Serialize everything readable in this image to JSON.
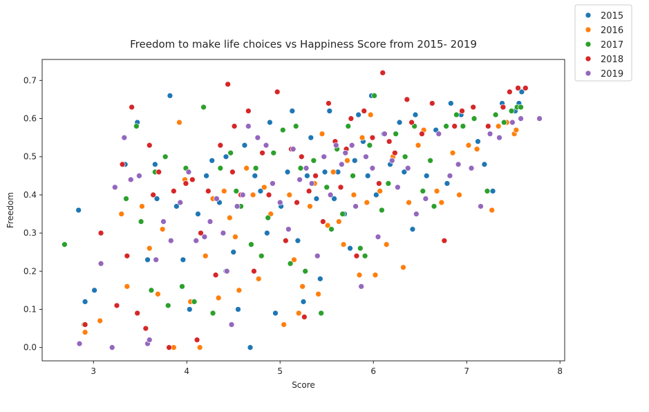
{
  "chart_data": {
    "type": "scatter",
    "title": "Freedom to make life choices vs Happiness Score from 2015- 2019",
    "xlabel": "Score",
    "ylabel": "Freedom",
    "xlim": [
      2.45,
      8.05
    ],
    "ylim": [
      -0.035,
      0.755
    ],
    "xticks": [
      3,
      4,
      5,
      6,
      7,
      8
    ],
    "yticks": [
      0.0,
      0.1,
      0.2,
      0.3,
      0.4,
      0.5,
      0.6,
      0.7
    ],
    "grid": false,
    "legend_position": "outside-top-right",
    "series": [
      {
        "name": "2015",
        "color": "#1f77b4",
        "points": [
          [
            2.84,
            0.36
          ],
          [
            2.91,
            0.12
          ],
          [
            3.01,
            0.15
          ],
          [
            3.34,
            0.48
          ],
          [
            3.47,
            0.59
          ],
          [
            3.58,
            0.23
          ],
          [
            3.66,
            0.48
          ],
          [
            3.68,
            0.39
          ],
          [
            3.82,
            0.66
          ],
          [
            3.89,
            0.37
          ],
          [
            3.96,
            0.23
          ],
          [
            4.03,
            0.1
          ],
          [
            4.12,
            0.35
          ],
          [
            4.21,
            0.45
          ],
          [
            4.27,
            0.49
          ],
          [
            4.35,
            0.38
          ],
          [
            4.42,
            0.5
          ],
          [
            4.5,
            0.25
          ],
          [
            4.55,
            0.1
          ],
          [
            4.62,
            0.53
          ],
          [
            4.68,
            0.0
          ],
          [
            4.73,
            0.45
          ],
          [
            4.79,
            0.41
          ],
          [
            4.86,
            0.3
          ],
          [
            4.89,
            0.59
          ],
          [
            4.95,
            0.09
          ],
          [
            5.01,
            0.37
          ],
          [
            5.08,
            0.46
          ],
          [
            5.13,
            0.62
          ],
          [
            5.19,
            0.28
          ],
          [
            5.25,
            0.12
          ],
          [
            5.29,
            0.45
          ],
          [
            5.33,
            0.55
          ],
          [
            5.39,
            0.39
          ],
          [
            5.43,
            0.18
          ],
          [
            5.48,
            0.46
          ],
          [
            5.53,
            0.62
          ],
          [
            5.58,
            0.39
          ],
          [
            5.62,
            0.46
          ],
          [
            5.69,
            0.35
          ],
          [
            5.75,
            0.26
          ],
          [
            5.8,
            0.49
          ],
          [
            5.84,
            0.61
          ],
          [
            5.89,
            0.54
          ],
          [
            5.94,
            0.45
          ],
          [
            5.98,
            0.66
          ],
          [
            6.03,
            0.4
          ],
          [
            6.11,
            0.56
          ],
          [
            6.18,
            0.48
          ],
          [
            6.28,
            0.59
          ],
          [
            6.33,
            0.46
          ],
          [
            6.42,
            0.31
          ],
          [
            6.45,
            0.61
          ],
          [
            6.57,
            0.45
          ],
          [
            6.67,
            0.57
          ],
          [
            6.79,
            0.43
          ],
          [
            6.83,
            0.64
          ],
          [
            6.94,
            0.61
          ],
          [
            7.12,
            0.54
          ],
          [
            7.19,
            0.48
          ],
          [
            7.28,
            0.41
          ],
          [
            7.38,
            0.64
          ],
          [
            7.52,
            0.62
          ],
          [
            7.59,
            0.67
          ],
          [
            7.56,
            0.64
          ]
        ]
      },
      {
        "name": "2016",
        "color": "#ff7f0e",
        "points": [
          [
            2.91,
            0.04
          ],
          [
            3.07,
            0.07
          ],
          [
            3.3,
            0.35
          ],
          [
            3.36,
            0.16
          ],
          [
            3.52,
            0.37
          ],
          [
            3.6,
            0.26
          ],
          [
            3.69,
            0.14
          ],
          [
            3.74,
            0.31
          ],
          [
            3.86,
            0.0
          ],
          [
            3.92,
            0.59
          ],
          [
            3.98,
            0.44
          ],
          [
            4.04,
            0.12
          ],
          [
            4.14,
            0.0
          ],
          [
            4.2,
            0.24
          ],
          [
            4.28,
            0.39
          ],
          [
            4.34,
            0.13
          ],
          [
            4.4,
            0.41
          ],
          [
            4.46,
            0.34
          ],
          [
            4.52,
            0.29
          ],
          [
            4.56,
            0.15
          ],
          [
            4.64,
            0.47
          ],
          [
            4.71,
            0.4
          ],
          [
            4.77,
            0.18
          ],
          [
            4.83,
            0.42
          ],
          [
            4.9,
            0.35
          ],
          [
            5.04,
            0.06
          ],
          [
            5.1,
            0.4
          ],
          [
            5.15,
            0.23
          ],
          [
            5.2,
            0.09
          ],
          [
            5.24,
            0.16
          ],
          [
            5.32,
            0.37
          ],
          [
            5.37,
            0.43
          ],
          [
            5.41,
            0.14
          ],
          [
            5.45,
            0.56
          ],
          [
            5.51,
            0.32
          ],
          [
            5.57,
            0.46
          ],
          [
            5.63,
            0.33
          ],
          [
            5.68,
            0.27
          ],
          [
            5.72,
            0.49
          ],
          [
            5.79,
            0.4
          ],
          [
            5.85,
            0.19
          ],
          [
            5.88,
            0.55
          ],
          [
            5.93,
            0.38
          ],
          [
            5.97,
            0.61
          ],
          [
            6.02,
            0.19
          ],
          [
            6.07,
            0.41
          ],
          [
            6.14,
            0.27
          ],
          [
            6.21,
            0.5
          ],
          [
            6.32,
            0.21
          ],
          [
            6.38,
            0.38
          ],
          [
            6.48,
            0.53
          ],
          [
            6.54,
            0.57
          ],
          [
            6.68,
            0.41
          ],
          [
            6.73,
            0.38
          ],
          [
            6.85,
            0.51
          ],
          [
            6.92,
            0.4
          ],
          [
            7.02,
            0.53
          ],
          [
            7.11,
            0.52
          ],
          [
            7.27,
            0.36
          ],
          [
            7.34,
            0.58
          ],
          [
            7.43,
            0.59
          ],
          [
            7.51,
            0.56
          ],
          [
            7.53,
            0.57
          ]
        ]
      },
      {
        "name": "2017",
        "color": "#2ca02c",
        "points": [
          [
            2.69,
            0.27
          ],
          [
            2.9,
            0.06
          ],
          [
            3.35,
            0.39
          ],
          [
            3.46,
            0.58
          ],
          [
            3.51,
            0.33
          ],
          [
            3.62,
            0.15
          ],
          [
            3.66,
            0.46
          ],
          [
            3.77,
            0.5
          ],
          [
            3.8,
            0.11
          ],
          [
            3.95,
            0.16
          ],
          [
            3.99,
            0.47
          ],
          [
            4.08,
            0.12
          ],
          [
            4.18,
            0.63
          ],
          [
            4.28,
            0.09
          ],
          [
            4.36,
            0.47
          ],
          [
            4.42,
            0.2
          ],
          [
            4.47,
            0.51
          ],
          [
            4.53,
            0.41
          ],
          [
            4.58,
            0.37
          ],
          [
            4.69,
            0.27
          ],
          [
            4.74,
            0.47
          ],
          [
            4.8,
            0.24
          ],
          [
            4.87,
            0.34
          ],
          [
            4.93,
            0.51
          ],
          [
            5.03,
            0.57
          ],
          [
            5.11,
            0.22
          ],
          [
            5.17,
            0.58
          ],
          [
            5.22,
            0.47
          ],
          [
            5.27,
            0.2
          ],
          [
            5.36,
            0.49
          ],
          [
            5.44,
            0.09
          ],
          [
            5.5,
            0.42
          ],
          [
            5.55,
            0.31
          ],
          [
            5.61,
            0.52
          ],
          [
            5.67,
            0.35
          ],
          [
            5.73,
            0.58
          ],
          [
            5.78,
            0.45
          ],
          [
            5.86,
            0.26
          ],
          [
            5.91,
            0.24
          ],
          [
            5.96,
            0.53
          ],
          [
            6.01,
            0.66
          ],
          [
            6.09,
            0.36
          ],
          [
            6.16,
            0.43
          ],
          [
            6.24,
            0.56
          ],
          [
            6.34,
            0.5
          ],
          [
            6.44,
            0.58
          ],
          [
            6.53,
            0.41
          ],
          [
            6.61,
            0.49
          ],
          [
            6.65,
            0.37
          ],
          [
            6.78,
            0.58
          ],
          [
            6.89,
            0.61
          ],
          [
            6.96,
            0.58
          ],
          [
            7.08,
            0.6
          ],
          [
            7.22,
            0.41
          ],
          [
            7.31,
            0.61
          ],
          [
            7.4,
            0.59
          ],
          [
            7.48,
            0.62
          ],
          [
            7.54,
            0.63
          ],
          [
            7.58,
            0.63
          ]
        ]
      },
      {
        "name": "2018",
        "color": "#d62728",
        "points": [
          [
            2.91,
            0.06
          ],
          [
            3.08,
            0.3
          ],
          [
            3.25,
            0.11
          ],
          [
            3.31,
            0.48
          ],
          [
            3.36,
            0.24
          ],
          [
            3.41,
            0.63
          ],
          [
            3.47,
            0.09
          ],
          [
            3.56,
            0.05
          ],
          [
            3.6,
            0.53
          ],
          [
            3.64,
            0.4
          ],
          [
            3.7,
            0.46
          ],
          [
            3.81,
            0.0
          ],
          [
            3.86,
            0.41
          ],
          [
            3.99,
            0.43
          ],
          [
            4.06,
            0.44
          ],
          [
            4.11,
            0.02
          ],
          [
            4.15,
            0.3
          ],
          [
            4.23,
            0.41
          ],
          [
            4.31,
            0.19
          ],
          [
            4.36,
            0.53
          ],
          [
            4.44,
            0.69
          ],
          [
            4.49,
            0.46
          ],
          [
            4.51,
            0.58
          ],
          [
            4.58,
            0.4
          ],
          [
            4.66,
            0.62
          ],
          [
            4.72,
            0.2
          ],
          [
            4.81,
            0.51
          ],
          [
            4.88,
            0.4
          ],
          [
            4.97,
            0.67
          ],
          [
            5.06,
            0.28
          ],
          [
            5.12,
            0.52
          ],
          [
            5.18,
            0.38
          ],
          [
            5.23,
            0.5
          ],
          [
            5.26,
            0.08
          ],
          [
            5.31,
            0.41
          ],
          [
            5.38,
            0.45
          ],
          [
            5.46,
            0.33
          ],
          [
            5.52,
            0.64
          ],
          [
            5.59,
            0.54
          ],
          [
            5.65,
            0.42
          ],
          [
            5.71,
            0.52
          ],
          [
            5.76,
            0.6
          ],
          [
            5.82,
            0.24
          ],
          [
            5.9,
            0.62
          ],
          [
            5.99,
            0.55
          ],
          [
            6.06,
            0.43
          ],
          [
            6.1,
            0.72
          ],
          [
            6.17,
            0.54
          ],
          [
            6.23,
            0.51
          ],
          [
            6.36,
            0.65
          ],
          [
            6.41,
            0.59
          ],
          [
            6.52,
            0.56
          ],
          [
            6.63,
            0.64
          ],
          [
            6.76,
            0.28
          ],
          [
            6.87,
            0.58
          ],
          [
            6.95,
            0.62
          ],
          [
            7.07,
            0.63
          ],
          [
            7.23,
            0.58
          ],
          [
            7.39,
            0.63
          ],
          [
            7.46,
            0.67
          ],
          [
            7.55,
            0.68
          ],
          [
            7.63,
            0.68
          ]
        ]
      },
      {
        "name": "2019",
        "color": "#9467bd",
        "points": [
          [
            2.85,
            0.01
          ],
          [
            3.08,
            0.22
          ],
          [
            3.2,
            0.0
          ],
          [
            3.23,
            0.42
          ],
          [
            3.33,
            0.55
          ],
          [
            3.4,
            0.44
          ],
          [
            3.49,
            0.45
          ],
          [
            3.58,
            0.01
          ],
          [
            3.6,
            0.02
          ],
          [
            3.67,
            0.23
          ],
          [
            3.75,
            0.33
          ],
          [
            3.83,
            0.28
          ],
          [
            3.93,
            0.38
          ],
          [
            4.02,
            0.46
          ],
          [
            4.1,
            0.28
          ],
          [
            4.19,
            0.29
          ],
          [
            4.25,
            0.33
          ],
          [
            4.32,
            0.39
          ],
          [
            4.39,
            0.3
          ],
          [
            4.43,
            0.2
          ],
          [
            4.48,
            0.06
          ],
          [
            4.54,
            0.37
          ],
          [
            4.6,
            0.4
          ],
          [
            4.66,
            0.58
          ],
          [
            4.76,
            0.55
          ],
          [
            4.85,
            0.53
          ],
          [
            4.92,
            0.43
          ],
          [
            5.0,
            0.38
          ],
          [
            5.09,
            0.31
          ],
          [
            5.14,
            0.52
          ],
          [
            5.21,
            0.44
          ],
          [
            5.28,
            0.47
          ],
          [
            5.34,
            0.43
          ],
          [
            5.4,
            0.24
          ],
          [
            5.47,
            0.5
          ],
          [
            5.54,
            0.4
          ],
          [
            5.6,
            0.53
          ],
          [
            5.66,
            0.48
          ],
          [
            5.7,
            0.51
          ],
          [
            5.77,
            0.53
          ],
          [
            5.81,
            0.37
          ],
          [
            5.87,
            0.16
          ],
          [
            5.92,
            0.5
          ],
          [
            5.99,
            0.47
          ],
          [
            6.05,
            0.29
          ],
          [
            6.12,
            0.56
          ],
          [
            6.2,
            0.49
          ],
          [
            6.26,
            0.42
          ],
          [
            6.37,
            0.47
          ],
          [
            6.46,
            0.35
          ],
          [
            6.56,
            0.39
          ],
          [
            6.7,
            0.56
          ],
          [
            6.82,
            0.45
          ],
          [
            6.91,
            0.48
          ],
          [
            7.05,
            0.47
          ],
          [
            7.15,
            0.37
          ],
          [
            7.25,
            0.56
          ],
          [
            7.35,
            0.55
          ],
          [
            7.49,
            0.59
          ],
          [
            7.58,
            0.6
          ],
          [
            7.78,
            0.6
          ]
        ]
      }
    ]
  }
}
